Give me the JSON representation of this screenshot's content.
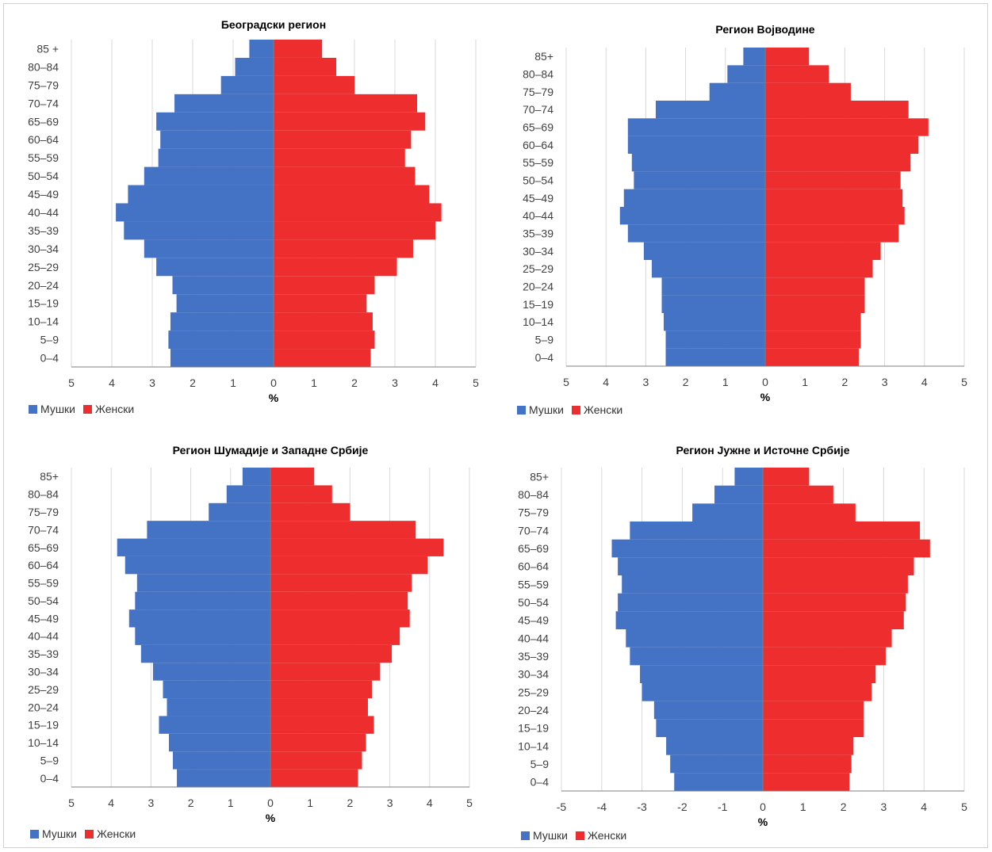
{
  "colors": {
    "male": "#4472C4",
    "female": "#EE2E2E",
    "grid": "#d9d9d9",
    "axis": "#7f7f7f",
    "text": "#404040"
  },
  "legend": {
    "male": "Мушки",
    "female": "Женски"
  },
  "chart_data": [
    {
      "type": "bar",
      "orientation": "horizontal-pyramid",
      "title": "Београдски регион",
      "xlabel": "%",
      "xlim": [
        -5,
        5
      ],
      "xticks": [
        "5",
        "4",
        "3",
        "2",
        "1",
        "0",
        "1",
        "2",
        "3",
        "4",
        "5"
      ],
      "categories": [
        "85 +",
        "80–84",
        "75–79",
        "70–74",
        "65–69",
        "60–64",
        "55–59",
        "50–54",
        "45–49",
        "40–44",
        "35–39",
        "30–34",
        "25–29",
        "20–24",
        "15–19",
        "10–14",
        "5–9",
        "0–4"
      ],
      "series": [
        {
          "name": "Мушки",
          "values": [
            0.6,
            0.95,
            1.3,
            2.45,
            2.9,
            2.8,
            2.85,
            3.2,
            3.6,
            3.9,
            3.7,
            3.2,
            2.9,
            2.5,
            2.4,
            2.55,
            2.6,
            2.55
          ]
        },
        {
          "name": "Женски",
          "values": [
            1.2,
            1.55,
            2.0,
            3.55,
            3.75,
            3.4,
            3.25,
            3.5,
            3.85,
            4.15,
            4.0,
            3.45,
            3.05,
            2.5,
            2.3,
            2.45,
            2.5,
            2.4
          ]
        }
      ]
    },
    {
      "type": "bar",
      "orientation": "horizontal-pyramid",
      "title": "Регион Војводине",
      "xlabel": "%",
      "xlim": [
        -5,
        5
      ],
      "xticks": [
        "5",
        "4",
        "3",
        "2",
        "1",
        "0",
        "1",
        "2",
        "3",
        "4",
        "5"
      ],
      "categories": [
        "85+",
        "80–84",
        "75–79",
        "70–74",
        "65–69",
        "60–64",
        "55–59",
        "50–54",
        "45–49",
        "40–44",
        "35–39",
        "30–34",
        "25–29",
        "20–24",
        "15–19",
        "10–14",
        "5–9",
        "0–4"
      ],
      "series": [
        {
          "name": "Мушки",
          "values": [
            0.55,
            0.95,
            1.4,
            2.75,
            3.45,
            3.45,
            3.35,
            3.3,
            3.55,
            3.65,
            3.45,
            3.05,
            2.85,
            2.6,
            2.6,
            2.55,
            2.5,
            2.5
          ]
        },
        {
          "name": "Женски",
          "values": [
            1.1,
            1.6,
            2.15,
            3.6,
            4.1,
            3.85,
            3.65,
            3.4,
            3.45,
            3.5,
            3.35,
            2.9,
            2.7,
            2.5,
            2.5,
            2.4,
            2.4,
            2.35
          ]
        }
      ]
    },
    {
      "type": "bar",
      "orientation": "horizontal-pyramid",
      "title": "Регион Шумадије и Западне Србије",
      "xlabel": "%",
      "xlim": [
        -5,
        5
      ],
      "xticks": [
        "5",
        "4",
        "3",
        "2",
        "1",
        "0",
        "1",
        "2",
        "3",
        "4",
        "5"
      ],
      "categories": [
        "85+",
        "80–84",
        "75–79",
        "70–74",
        "65–69",
        "60–64",
        "55–59",
        "50–54",
        "45–49",
        "40–44",
        "35–39",
        "30–34",
        "25–29",
        "20–24",
        "15–19",
        "10–14",
        "5–9",
        "0–4"
      ],
      "series": [
        {
          "name": "Мушки",
          "values": [
            0.7,
            1.1,
            1.55,
            3.1,
            3.85,
            3.65,
            3.35,
            3.4,
            3.55,
            3.4,
            3.25,
            2.95,
            2.7,
            2.6,
            2.8,
            2.55,
            2.45,
            2.35
          ]
        },
        {
          "name": "Женски",
          "values": [
            1.1,
            1.55,
            2.0,
            3.65,
            4.35,
            3.95,
            3.55,
            3.45,
            3.5,
            3.25,
            3.05,
            2.75,
            2.55,
            2.45,
            2.6,
            2.4,
            2.3,
            2.2
          ]
        }
      ]
    },
    {
      "type": "bar",
      "orientation": "horizontal-pyramid",
      "title": "Регион Јужне и Источне Србије",
      "xlabel": "%",
      "xlim": [
        -5,
        5
      ],
      "xticks": [
        "-5",
        "-4",
        "-3",
        "-2",
        "-1",
        "0",
        "1",
        "2",
        "3",
        "4",
        "5"
      ],
      "categories": [
        "85+",
        "80–84",
        "75–79",
        "70–74",
        "65–69",
        "60–64",
        "55–59",
        "50–54",
        "45–49",
        "40–44",
        "35–39",
        "30–34",
        "25–29",
        "20–24",
        "15–19",
        "10–14",
        "5–9",
        "0–4"
      ],
      "series": [
        {
          "name": "Мушки",
          "values": [
            0.7,
            1.2,
            1.75,
            3.3,
            3.75,
            3.6,
            3.5,
            3.6,
            3.65,
            3.4,
            3.3,
            3.05,
            3.0,
            2.7,
            2.65,
            2.4,
            2.3,
            2.2
          ]
        },
        {
          "name": "Женски",
          "values": [
            1.15,
            1.75,
            2.3,
            3.9,
            4.15,
            3.75,
            3.6,
            3.55,
            3.5,
            3.2,
            3.05,
            2.8,
            2.7,
            2.5,
            2.5,
            2.25,
            2.2,
            2.15
          ]
        }
      ]
    }
  ]
}
